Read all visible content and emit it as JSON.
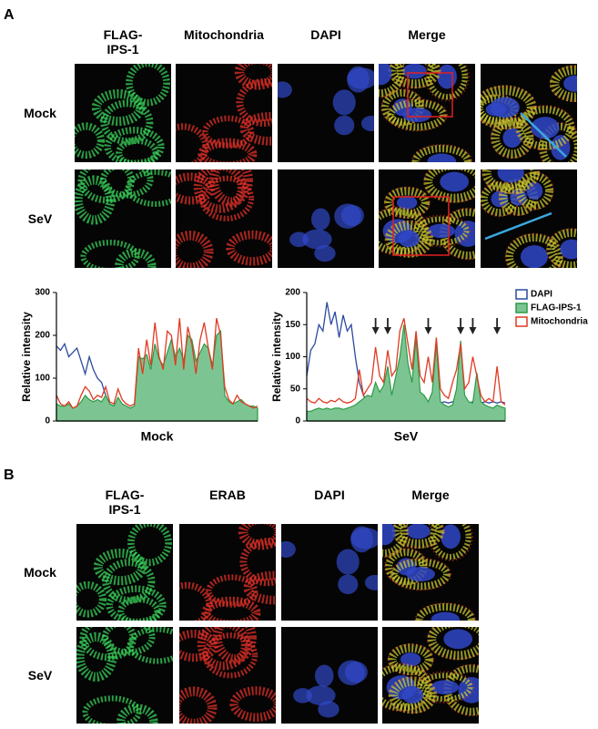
{
  "panel_a": {
    "label": "A",
    "columns": [
      "FLAG-\nIPS-1",
      "Mitochondria",
      "DAPI",
      "Merge"
    ],
    "rows": [
      "Mock",
      "SeV"
    ],
    "charts": [
      {
        "type": "line",
        "xlabel": "Mock",
        "ylabel": "Relative intensity",
        "ylim": [
          0,
          300
        ],
        "yticks": [
          0,
          100,
          200,
          300
        ],
        "series": [
          {
            "name": "DAPI",
            "color": "#2b4aa0",
            "values": [
              175,
              165,
              180,
              150,
              160,
              170,
              140,
              110,
              150,
              120,
              100,
              90,
              60,
              40,
              35,
              30,
              30,
              32,
              30,
              30,
              30,
              28,
              30,
              32,
              30,
              30,
              28,
              30,
              30,
              32,
              30,
              30,
              28,
              30,
              30,
              32,
              30,
              30,
              28,
              30,
              30,
              32,
              30,
              30,
              28,
              30,
              30,
              32,
              30,
              30
            ]
          },
          {
            "name": "FLAG-IPS-1",
            "color": "#2e9a46",
            "area": true,
            "values": [
              40,
              35,
              35,
              40,
              30,
              35,
              45,
              60,
              50,
              45,
              50,
              45,
              60,
              40,
              35,
              55,
              40,
              35,
              30,
              35,
              150,
              145,
              155,
              120,
              180,
              145,
              130,
              160,
              190,
              150,
              170,
              140,
              200,
              190,
              140,
              160,
              180,
              170,
              130,
              200,
              210,
              60,
              45,
              40,
              45,
              50,
              40,
              35,
              35,
              30
            ]
          },
          {
            "name": "Mitochondria",
            "color": "#e03a22",
            "values": [
              60,
              40,
              35,
              45,
              30,
              35,
              60,
              80,
              70,
              50,
              60,
              55,
              80,
              45,
              40,
              75,
              50,
              40,
              35,
              40,
              170,
              110,
              190,
              130,
              230,
              150,
              120,
              210,
              200,
              130,
              240,
              120,
              220,
              180,
              110,
              190,
              230,
              170,
              120,
              240,
              200,
              80,
              50,
              40,
              60,
              45,
              40,
              35,
              30,
              35
            ]
          }
        ]
      },
      {
        "type": "line",
        "xlabel": "SeV",
        "ylabel": "Relative intensity",
        "ylim": [
          0,
          200
        ],
        "yticks": [
          0,
          50,
          100,
          150,
          200
        ],
        "legend": "right",
        "series": [
          {
            "name": "DAPI",
            "color": "#2b4aa0",
            "values": [
              70,
              110,
              120,
              150,
              140,
              185,
              150,
              170,
              130,
              165,
              140,
              150,
              100,
              60,
              40,
              30,
              30,
              28,
              28,
              30,
              28,
              30,
              30,
              28,
              30,
              30,
              28,
              30,
              28,
              30,
              28,
              30,
              30,
              28,
              30,
              28,
              30,
              30,
              28,
              30,
              28,
              30,
              30,
              28,
              30,
              28,
              30,
              28,
              30,
              28
            ]
          },
          {
            "name": "FLAG-IPS-1",
            "color": "#2e9a46",
            "area": true,
            "values": [
              15,
              15,
              18,
              20,
              18,
              20,
              18,
              20,
              20,
              18,
              20,
              22,
              25,
              30,
              35,
              40,
              38,
              60,
              45,
              55,
              85,
              40,
              70,
              100,
              150,
              90,
              60,
              130,
              45,
              40,
              30,
              45,
              120,
              30,
              25,
              22,
              25,
              50,
              125,
              40,
              30,
              28,
              75,
              30,
              25,
              22,
              20,
              25,
              22,
              20
            ]
          },
          {
            "name": "Mitochondria",
            "color": "#e03a22",
            "values": [
              35,
              30,
              28,
              35,
              30,
              28,
              32,
              30,
              35,
              30,
              28,
              30,
              35,
              80,
              40,
              50,
              60,
              115,
              70,
              60,
              110,
              70,
              80,
              140,
              160,
              120,
              80,
              140,
              70,
              60,
              100,
              60,
              130,
              50,
              40,
              35,
              60,
              80,
              120,
              50,
              60,
              100,
              70,
              40,
              30,
              35,
              30,
              85,
              30,
              25
            ]
          }
        ]
      }
    ]
  },
  "panel_b": {
    "label": "B",
    "columns": [
      "FLAG-\nIPS-1",
      "ERAB",
      "DAPI",
      "Merge"
    ],
    "rows": [
      "Mock",
      "SeV"
    ]
  }
}
